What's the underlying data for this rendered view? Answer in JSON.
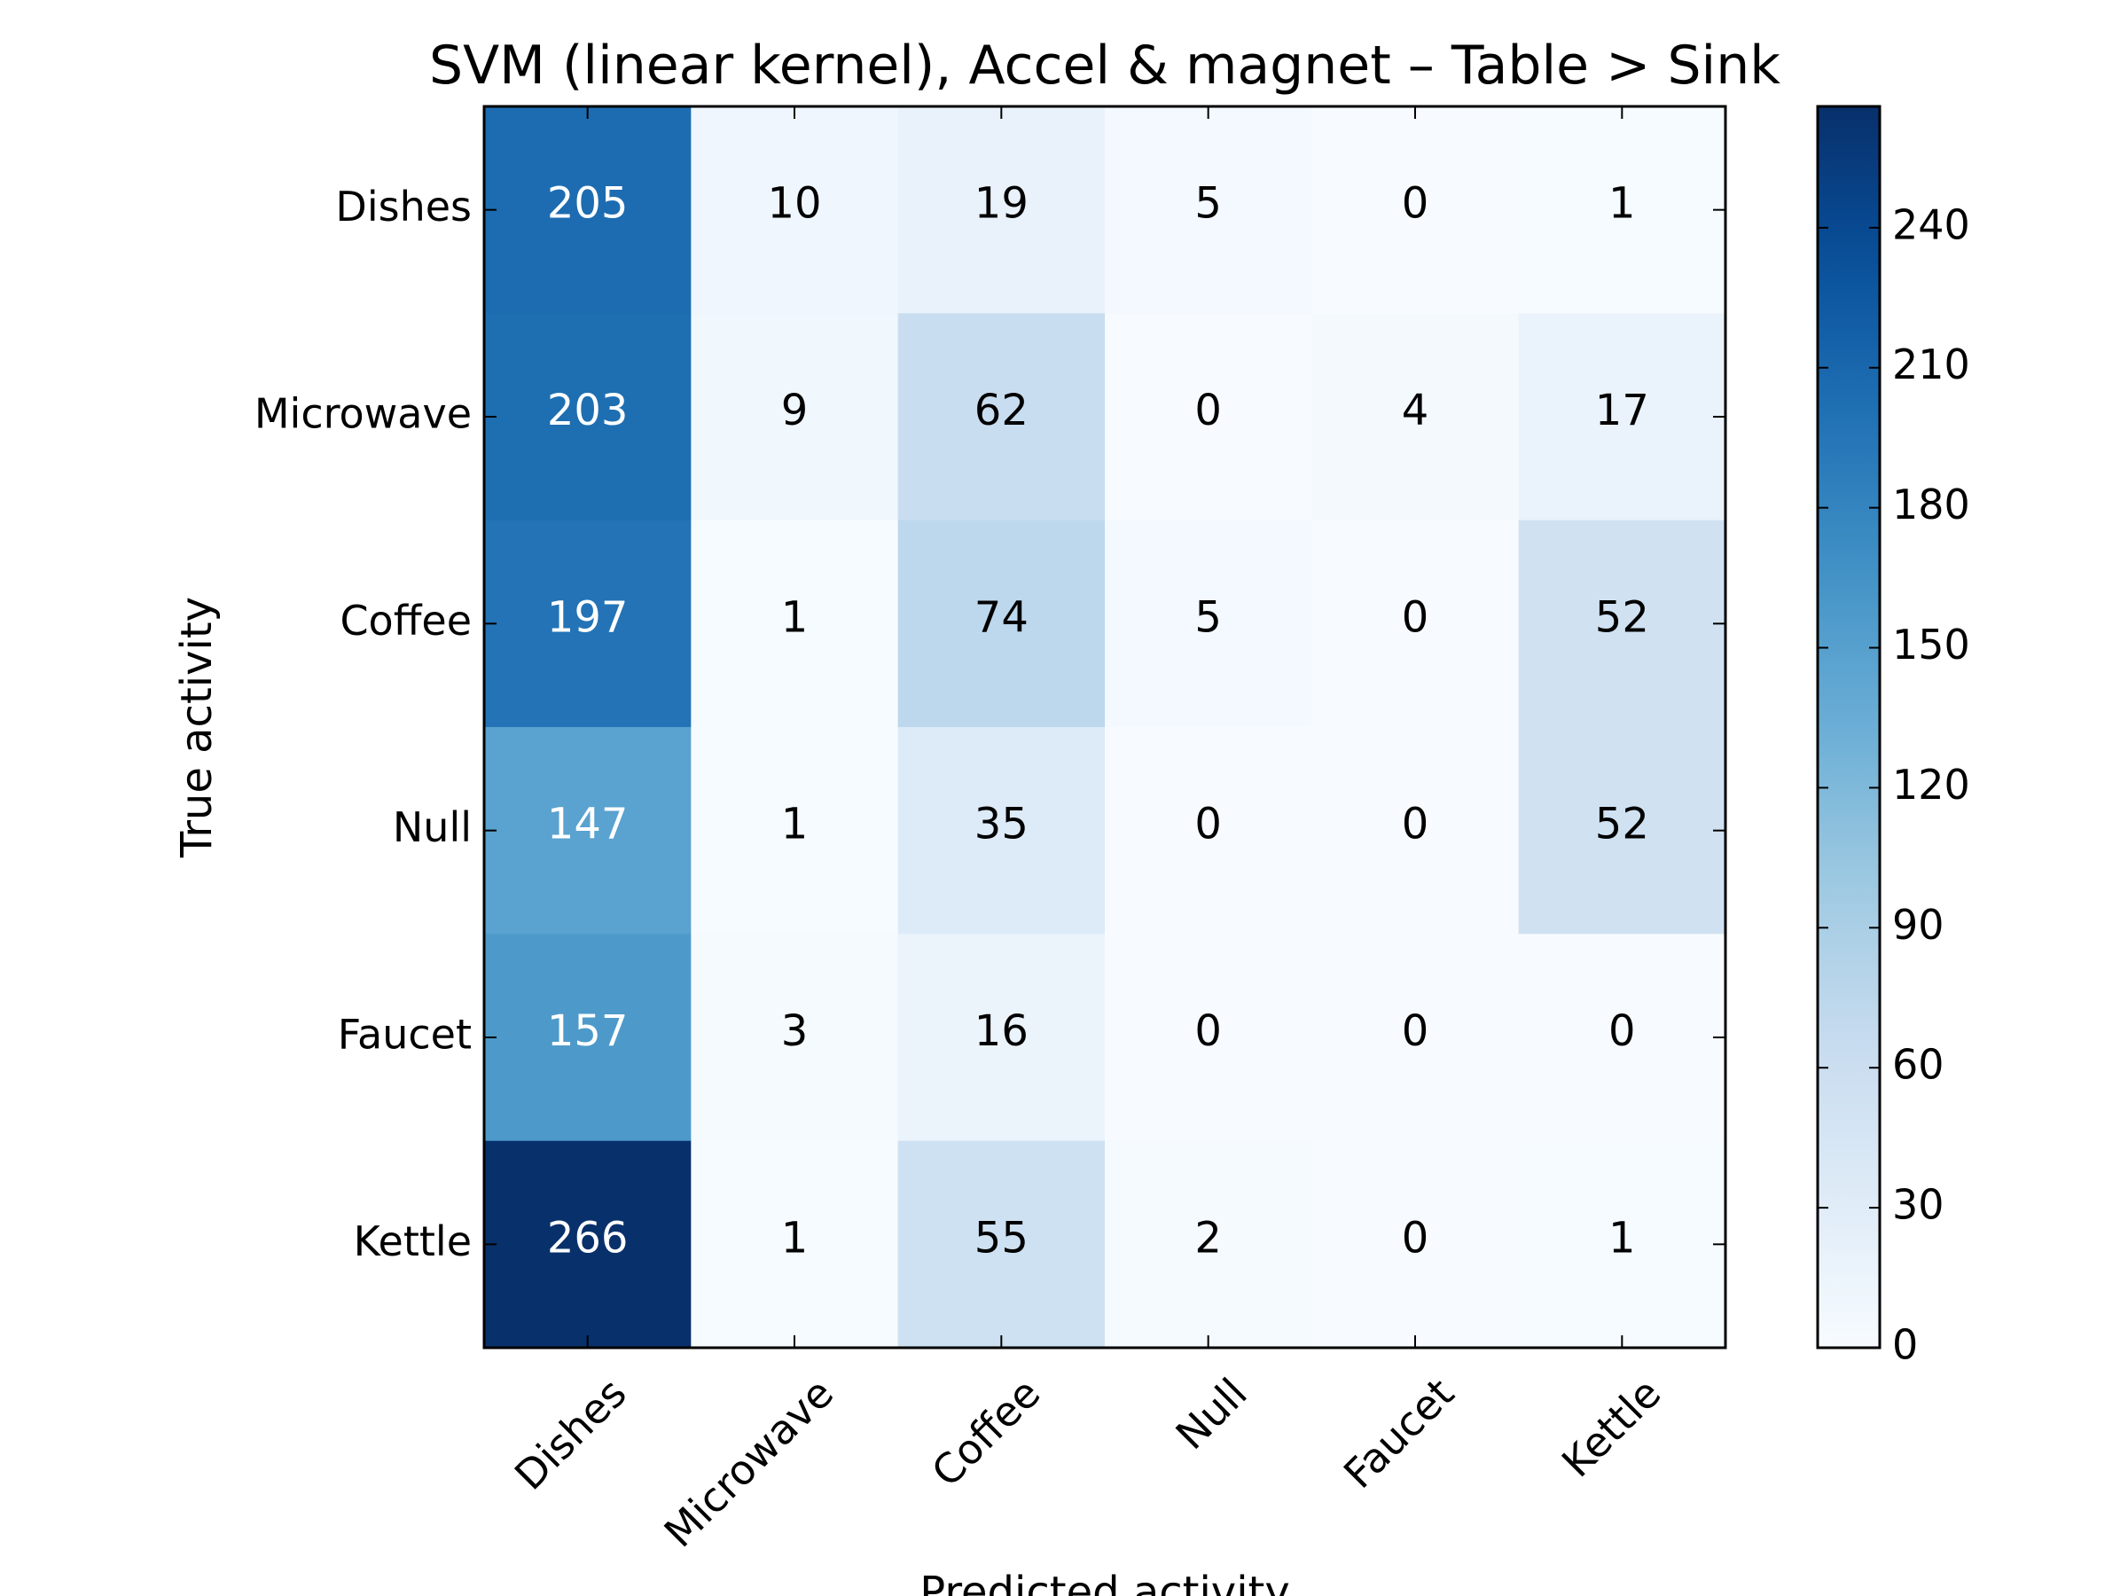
{
  "chart_data": {
    "type": "heatmap",
    "title": "SVM (linear kernel), Accel & magnet – Table > Sink",
    "xlabel": "Predicted activity",
    "ylabel": "True activity",
    "x_categories": [
      "Dishes",
      "Microwave",
      "Coffee",
      "Null",
      "Faucet",
      "Kettle"
    ],
    "y_categories": [
      "Dishes",
      "Microwave",
      "Coffee",
      "Null",
      "Faucet",
      "Kettle"
    ],
    "values": [
      [
        205,
        10,
        19,
        5,
        0,
        1
      ],
      [
        203,
        9,
        62,
        0,
        4,
        17
      ],
      [
        197,
        1,
        74,
        5,
        0,
        52
      ],
      [
        147,
        1,
        35,
        0,
        0,
        52
      ],
      [
        157,
        3,
        16,
        0,
        0,
        0
      ],
      [
        266,
        1,
        55,
        2,
        0,
        1
      ]
    ],
    "colormap": "Blues",
    "color_range": [
      0,
      266
    ],
    "colorbar_ticks": [
      "0",
      "30",
      "60",
      "90",
      "120",
      "150",
      "180",
      "210",
      "240"
    ],
    "colorbar_tick_values": [
      0,
      30,
      60,
      90,
      120,
      150,
      180,
      210,
      240
    ],
    "text_color_light": "#ffffff",
    "text_color_dark": "#000000",
    "x_tick_rotation_deg": 45
  }
}
